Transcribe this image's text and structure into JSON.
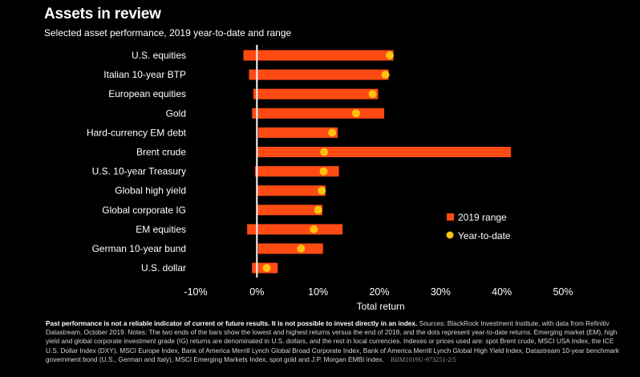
{
  "header": {
    "title": "Assets in review",
    "subtitle": "Selected asset performance, 2019 year-to-date and range"
  },
  "chart_data": {
    "type": "bar",
    "categories": [
      "U.S. equities",
      "Italian 10-year BTP",
      "European equities",
      "Gold",
      "Hard-currency EM debt",
      "Brent crude",
      "U.S. 10-year Treasury",
      "Global high yield",
      "Global corporate IG",
      "EM equities",
      "German 10-year bund",
      "U.S. dollar"
    ],
    "series": [
      {
        "name": "2019 range",
        "ranges": [
          [
            -2.2,
            22.3
          ],
          [
            -1.3,
            21.5
          ],
          [
            -0.6,
            19.8
          ],
          [
            -0.8,
            20.8
          ],
          [
            0.2,
            13.2
          ],
          [
            0.1,
            41.5
          ],
          [
            -0.3,
            13.4
          ],
          [
            0.1,
            11.2
          ],
          [
            0.1,
            10.7
          ],
          [
            -1.6,
            14.0
          ],
          [
            0.2,
            10.8
          ],
          [
            -0.8,
            3.4
          ]
        ]
      },
      {
        "name": "Year-to-date",
        "values": [
          21.7,
          21.0,
          18.9,
          16.2,
          12.3,
          11.0,
          10.9,
          10.6,
          10.0,
          9.3,
          7.2,
          1.6
        ]
      }
    ],
    "xlabel": "Total return",
    "ylabel": "",
    "xlim": [
      -10,
      50
    ],
    "xticks": [
      -10,
      0,
      10,
      20,
      30,
      40,
      50
    ],
    "xtick_labels": [
      "-10%",
      "0%",
      "10%",
      "20%",
      "30%",
      "40%",
      "50%"
    ],
    "grid": false,
    "legend_position": "right",
    "colors": {
      "range_bar": "#ff4a14",
      "ytd_dot": "#ffc20e",
      "zero_line": "#ffffff",
      "background": "#000000"
    }
  },
  "footnote": {
    "bold_text": "Past performance is not a reliable indicator of current or future results. It is not possible to invest directly in an index.",
    "body_text": " Sources: BlackRock Investment Institute, with data from Refinitiv Datastream, October 2019. Notes: The two ends of the bars show the lowest and highest returns versus the end of 2018, and the dots represent year-to-date returns. Emerging market (EM), high yield and global corporate investment grade (IG) returns are denominated in U.S. dollars, and the rest in local currencies. Indexes or prices used are: spot Brent crude, MSCI USA Index, the ICE U.S. Dollar Index (DXY), MSCI Europe Index, Bank of America Merrill Lynch Global Broad Corporate Index, Bank of America Merrill Lynch Global High Yield Index, Datastream 10-year benchmark government bond (U.S., German and Italy), MSCI Emerging Markets Index, spot gold and J.P. Morgan EMBI index.",
    "code": "BIIM1019U-973251-2/5"
  }
}
